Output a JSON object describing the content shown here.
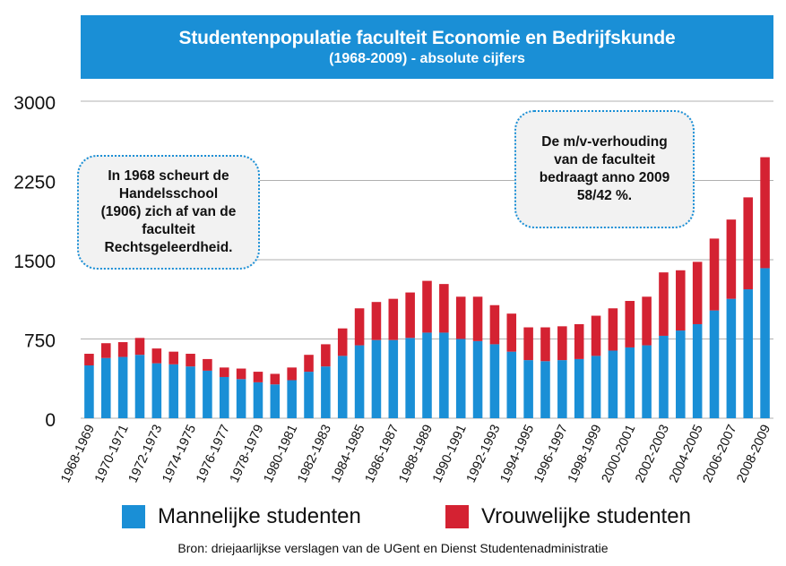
{
  "header": {
    "title": "Studentenpopulatie faculteit Economie en Bedrijfskunde",
    "subtitle": "(1968-2009) - absolute cijfers"
  },
  "notes": {
    "left": [
      "In 1968 scheurt de",
      "Handelsschool",
      "(1906) zich af van de",
      "faculteit",
      "Rechtsgeleerdheid."
    ],
    "right": [
      "De m/v-verhouding",
      "van de faculteit",
      "bedraagt anno 2009",
      "58/42 %."
    ]
  },
  "legend": {
    "male_label": "Mannelijke studenten",
    "female_label": "Vrouwelijke studenten"
  },
  "source": "Bron: driejaarlijkse verslagen van de UGent en Dienst Studentenadministratie",
  "colors": {
    "male": "#1a8fd6",
    "female": "#d42232",
    "banner": "#1a8fd6",
    "grid": "#b0b0b0"
  },
  "chart_data": {
    "type": "bar",
    "stacked": true,
    "title": "Studentenpopulatie faculteit Economie en Bedrijfskunde",
    "subtitle": "(1968-2009) - absolute cijfers",
    "ylim": [
      0,
      3000
    ],
    "yticks": [
      0,
      750,
      1500,
      2250,
      3000
    ],
    "grid": true,
    "legend_position": "bottom",
    "categories": [
      "1968-1969",
      "1969-1970",
      "1970-1971",
      "1971-1972",
      "1972-1973",
      "1973-1974",
      "1974-1975",
      "1975-1976",
      "1976-1977",
      "1977-1978",
      "1978-1979",
      "1979-1980",
      "1980-1981",
      "1981-1982",
      "1982-1983",
      "1983-1984",
      "1984-1985",
      "1985-1986",
      "1986-1987",
      "1987-1988",
      "1988-1989",
      "1989-1990",
      "1990-1991",
      "1991-1992",
      "1992-1993",
      "1993-1994",
      "1994-1995",
      "1995-1996",
      "1996-1997",
      "1997-1998",
      "1998-1999",
      "1999-2000",
      "2000-2001",
      "2001-2002",
      "2002-2003",
      "2003-2004",
      "2004-2005",
      "2005-2006",
      "2006-2007",
      "2007-2008",
      "2008-2009"
    ],
    "xtick_labels": [
      "1968-1969",
      "1970-1971",
      "1972-1973",
      "1974-1975",
      "1976-1977",
      "1978-1979",
      "1980-1981",
      "1982-1983",
      "1984-1985",
      "1986-1987",
      "1988-1989",
      "1990-1991",
      "1992-1993",
      "1994-1995",
      "1996-1997",
      "1998-1999",
      "2000-2001",
      "2002-2003",
      "2004-2005",
      "2006-2007",
      "2008-2009"
    ],
    "series": [
      {
        "name": "Mannelijke studenten",
        "values": [
          500,
          570,
          580,
          600,
          520,
          510,
          490,
          450,
          390,
          370,
          340,
          320,
          360,
          440,
          490,
          590,
          690,
          740,
          740,
          760,
          810,
          810,
          750,
          730,
          700,
          630,
          550,
          540,
          550,
          560,
          590,
          640,
          670,
          690,
          780,
          830,
          890,
          1020,
          1130,
          1220,
          1420
        ]
      },
      {
        "name": "Vrouwelijke studenten",
        "values": [
          110,
          140,
          140,
          160,
          140,
          120,
          120,
          110,
          90,
          100,
          100,
          100,
          120,
          160,
          210,
          260,
          350,
          360,
          390,
          430,
          490,
          460,
          400,
          420,
          370,
          360,
          310,
          320,
          320,
          330,
          380,
          400,
          440,
          460,
          600,
          570,
          590,
          680,
          750,
          870,
          1050
        ]
      }
    ]
  }
}
